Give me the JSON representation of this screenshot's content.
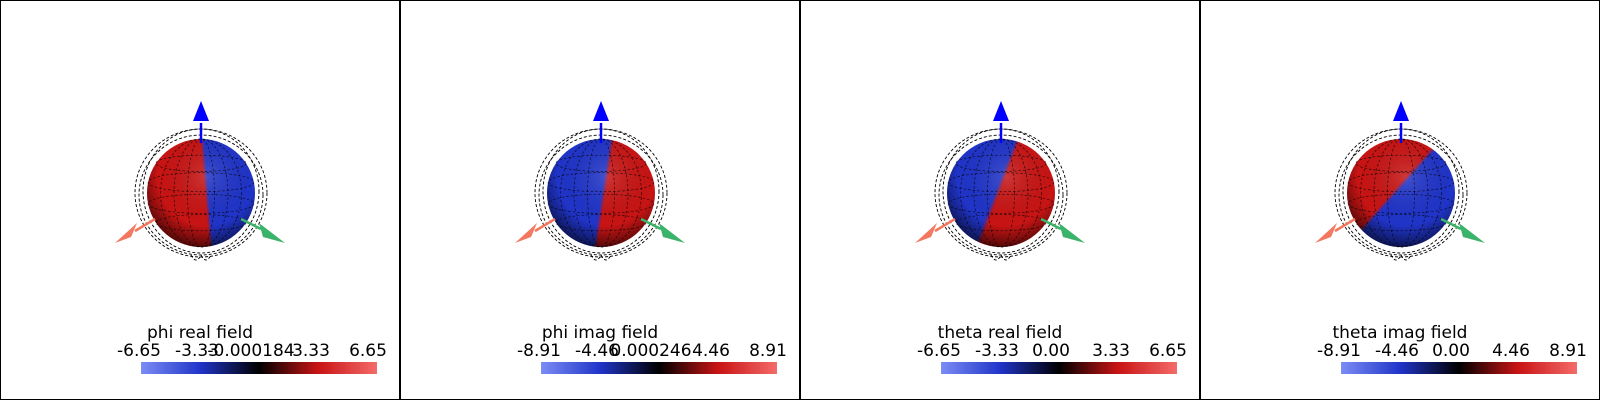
{
  "colormap": {
    "low": "#7b8cf5",
    "mid": "#000000",
    "high": "#f56a6a",
    "blue": "#2034c8",
    "red": "#c81414"
  },
  "axes_colors": {
    "x": "#f47860",
    "y": "#3cb36a",
    "z": "#0000ff"
  },
  "panels": [
    {
      "title": "phi real field",
      "min": -6.65,
      "max": 6.65,
      "ticks": [
        "-6.65",
        "-3.33",
        "-0.000184",
        "3.33",
        "6.65"
      ],
      "pattern": "split-red-blue-vertical"
    },
    {
      "title": "phi imag field",
      "min": -8.91,
      "max": 8.91,
      "ticks": [
        "-8.91",
        "-4.46",
        "0.000246",
        "4.46",
        "8.91"
      ],
      "pattern": "split-blue-red-vertical"
    },
    {
      "title": "theta real field",
      "min": -6.65,
      "max": 6.65,
      "ticks": [
        "-6.65",
        "-3.33",
        "0.00",
        "3.33",
        "6.65"
      ],
      "pattern": "split-blue-red-diagonal"
    },
    {
      "title": "theta imag field",
      "min": -8.91,
      "max": 8.91,
      "ticks": [
        "-8.91",
        "-4.46",
        "0.00",
        "4.46",
        "8.91"
      ],
      "pattern": "split-red-top-blue-right"
    }
  ]
}
